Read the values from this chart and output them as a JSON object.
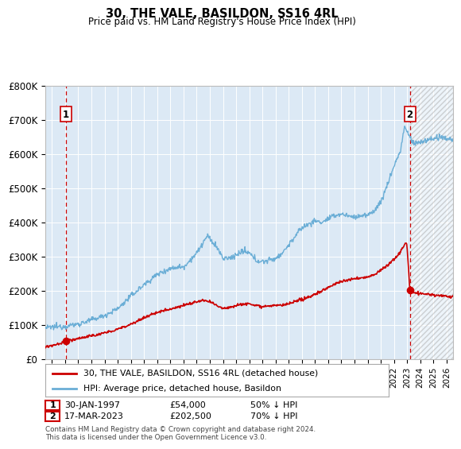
{
  "title": "30, THE VALE, BASILDON, SS16 4RL",
  "subtitle": "Price paid vs. HM Land Registry's House Price Index (HPI)",
  "plot_bg_color": "#dce9f5",
  "hpi_color": "#6baed6",
  "price_color": "#cc0000",
  "dashed_line_color": "#cc0000",
  "ylabel_values": [
    "£0",
    "£100K",
    "£200K",
    "£300K",
    "£400K",
    "£500K",
    "£600K",
    "£700K",
    "£800K"
  ],
  "ylim": [
    0,
    800000
  ],
  "xlim_start": 1995.5,
  "xlim_end": 2026.5,
  "sale1_x": 1997.08,
  "sale1_y": 54000,
  "sale1_label": "1",
  "sale1_date": "30-JAN-1997",
  "sale1_price": "£54,000",
  "sale1_hpi": "50% ↓ HPI",
  "sale2_x": 2023.21,
  "sale2_y": 202500,
  "sale2_label": "2",
  "sale2_date": "17-MAR-2023",
  "sale2_price": "£202,500",
  "sale2_hpi": "70% ↓ HPI",
  "legend_line1": "30, THE VALE, BASILDON, SS16 4RL (detached house)",
  "legend_line2": "HPI: Average price, detached house, Basildon",
  "footer": "Contains HM Land Registry data © Crown copyright and database right 2024.\nThis data is licensed under the Open Government Licence v3.0."
}
